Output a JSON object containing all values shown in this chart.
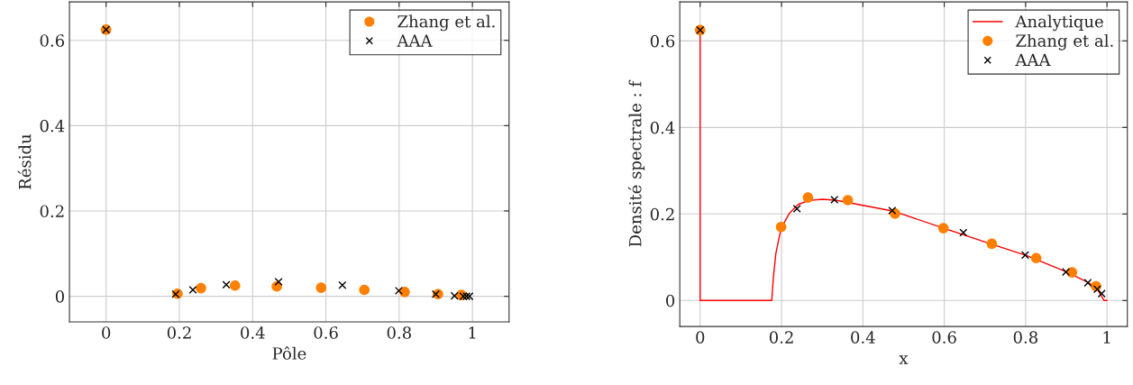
{
  "chart_data": [
    {
      "type": "scatter",
      "xlabel": "Pôle",
      "ylabel": "Résidu",
      "xlim": [
        -0.1,
        1.1
      ],
      "ylim": [
        -0.06,
        0.69
      ],
      "xticks": [
        0,
        0.2,
        0.4,
        0.6,
        0.8,
        1
      ],
      "yticks": [
        0,
        0.2,
        0.4,
        0.6
      ],
      "grid": true,
      "legend": "top right",
      "series": [
        {
          "name": "Zhang et al.",
          "marker": "circle",
          "color": "#ff8000",
          "x": [
            0,
            0.195,
            0.259,
            0.352,
            0.466,
            0.587,
            0.705,
            0.815,
            0.906,
            0.97
          ],
          "values": [
            0.625,
            0.006,
            0.019,
            0.025,
            0.023,
            0.02,
            0.015,
            0.01,
            0.005,
            0.003
          ]
        },
        {
          "name": "AAA",
          "marker": "cross",
          "color": "#000000",
          "x": [
            0,
            0.19,
            0.237,
            0.328,
            0.471,
            0.645,
            0.799,
            0.9,
            0.951,
            0.975,
            0.984,
            0.992
          ],
          "values": [
            0.625,
            0.005,
            0.015,
            0.027,
            0.034,
            0.026,
            0.013,
            0.005,
            0.001,
            0.0,
            0.0,
            0.0
          ]
        }
      ]
    },
    {
      "type": "scatter",
      "xlabel": "x",
      "ylabel": "Densité spectrale : f",
      "xlim": [
        -0.05,
        1.05
      ],
      "ylim": [
        -0.06,
        0.69
      ],
      "xticks": [
        0,
        0.2,
        0.4,
        0.6,
        0.8,
        1
      ],
      "yticks": [
        0,
        0.2,
        0.4,
        0.6
      ],
      "grid": true,
      "legend": "top right",
      "series": [
        {
          "name": "Analytique",
          "type": "line",
          "marker": "none",
          "line_style": "solid",
          "color": "#ff0000",
          "x": [
            0,
            0,
            0.176,
            0.18,
            0.186,
            0.199,
            0.219,
            0.241,
            0.267,
            0.3,
            0.333,
            0.473,
            0.599,
            0.717,
            0.802,
            0.901,
            0.953,
            0.975,
            0.993,
            1.0
          ],
          "values": [
            0.625,
            0,
            0,
            0.053,
            0.108,
            0.167,
            0.201,
            0.222,
            0.231,
            0.234,
            0.232,
            0.207,
            0.167,
            0.13,
            0.104,
            0.066,
            0.042,
            0.028,
            0.0,
            0.0
          ]
        },
        {
          "name": "Zhang et al.",
          "marker": "circle",
          "color": "#ff8000",
          "x": [
            0,
            0.199,
            0.265,
            0.363,
            0.479,
            0.598,
            0.717,
            0.826,
            0.914,
            0.973
          ],
          "values": [
            0.625,
            0.17,
            0.238,
            0.232,
            0.201,
            0.167,
            0.131,
            0.098,
            0.065,
            0.033
          ]
        },
        {
          "name": "AAA",
          "marker": "cross",
          "color": "#000000",
          "x": [
            0,
            0.238,
            0.33,
            0.472,
            0.647,
            0.799,
            0.899,
            0.953,
            0.976,
            0.987
          ],
          "values": [
            0.625,
            0.212,
            0.233,
            0.208,
            0.157,
            0.105,
            0.066,
            0.041,
            0.026,
            0.016
          ]
        }
      ]
    }
  ]
}
